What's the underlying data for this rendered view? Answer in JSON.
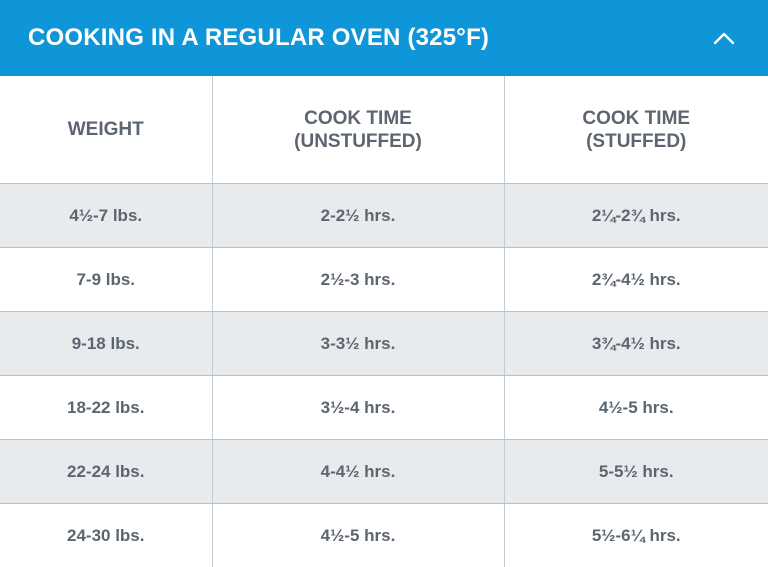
{
  "header": {
    "title": "COOKING IN A REGULAR OVEN (325°F)",
    "toggle_icon": "chevron-up-icon",
    "background_color": "#0f96d8"
  },
  "table": {
    "columns": [
      {
        "line1": "WEIGHT",
        "line2": ""
      },
      {
        "line1": "COOK TIME",
        "line2": "(UNSTUFFED)"
      },
      {
        "line1": "COOK TIME",
        "line2": "(STUFFED)"
      }
    ],
    "rows": [
      {
        "weight": "4½-7 lbs.",
        "unstuffed": "2-2½ hrs.",
        "stuffed": "2¼-2¾ hrs."
      },
      {
        "weight": "7-9 lbs.",
        "unstuffed": "2½-3 hrs.",
        "stuffed": "2¾-4½ hrs."
      },
      {
        "weight": "9-18 lbs.",
        "unstuffed": "3-3½ hrs.",
        "stuffed": "3¾-4½ hrs."
      },
      {
        "weight": "18-22 lbs.",
        "unstuffed": "3½-4 hrs.",
        "stuffed": "4½-5 hrs."
      },
      {
        "weight": "22-24 lbs.",
        "unstuffed": "4-4½ hrs.",
        "stuffed": "5-5½ hrs."
      },
      {
        "weight": "24-30 lbs.",
        "unstuffed": "4½-5 hrs.",
        "stuffed": "5½-6¼ hrs."
      }
    ],
    "shaded_row_color": "#e7ebee"
  }
}
